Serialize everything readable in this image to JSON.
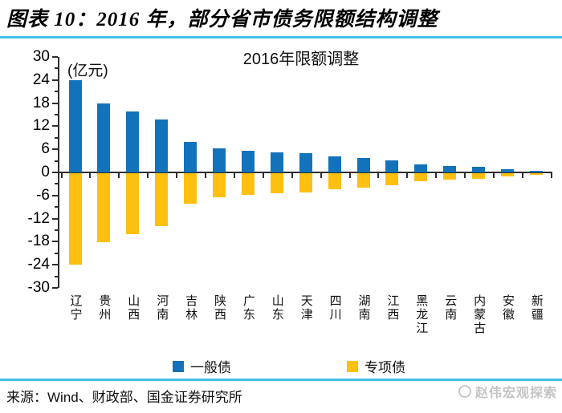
{
  "header": {
    "title": "图表 10：2016 年，部分省市债务限额结构调整"
  },
  "colors": {
    "accent_line": "#45C0E8",
    "general": "#1272BA",
    "special": "#FDC010",
    "axis": "#2e2e2e"
  },
  "chart_data": {
    "type": "bar",
    "title": "2016年限额调整",
    "unit_label": "(亿元)",
    "categories": [
      "辽宁",
      "贵州",
      "山西",
      "河南",
      "吉林",
      "陕西",
      "广东",
      "山东",
      "天津",
      "四川",
      "湖南",
      "江西",
      "黑龙江",
      "云南",
      "内蒙古",
      "安徽",
      "新疆"
    ],
    "series": [
      {
        "name": "一般债",
        "color": "#1272BA",
        "values": [
          23.9,
          17.9,
          15.8,
          13.7,
          7.9,
          6.2,
          5.6,
          5.2,
          5.1,
          4.2,
          3.7,
          3.2,
          2.0,
          1.6,
          1.5,
          0.8,
          0.4
        ]
      },
      {
        "name": "专项债",
        "color": "#FDC010",
        "values": [
          -23.7,
          -17.9,
          -15.8,
          -13.7,
          -7.9,
          -6.2,
          -5.6,
          -5.2,
          -5.1,
          -4.2,
          -3.7,
          -3.2,
          -2.0,
          -1.6,
          -1.5,
          -0.8,
          -0.4
        ]
      }
    ],
    "ylim": [
      -30,
      30
    ],
    "yticks": [
      30,
      24,
      18,
      12,
      6,
      0,
      -6,
      -12,
      -18,
      -24,
      -30
    ],
    "minor_tick_step": 3,
    "grid": false,
    "legend_position": "bottom"
  },
  "footer": {
    "source": "来源：Wind、财政部、国金证券研究所",
    "logo": "赵伟宏观探索"
  }
}
